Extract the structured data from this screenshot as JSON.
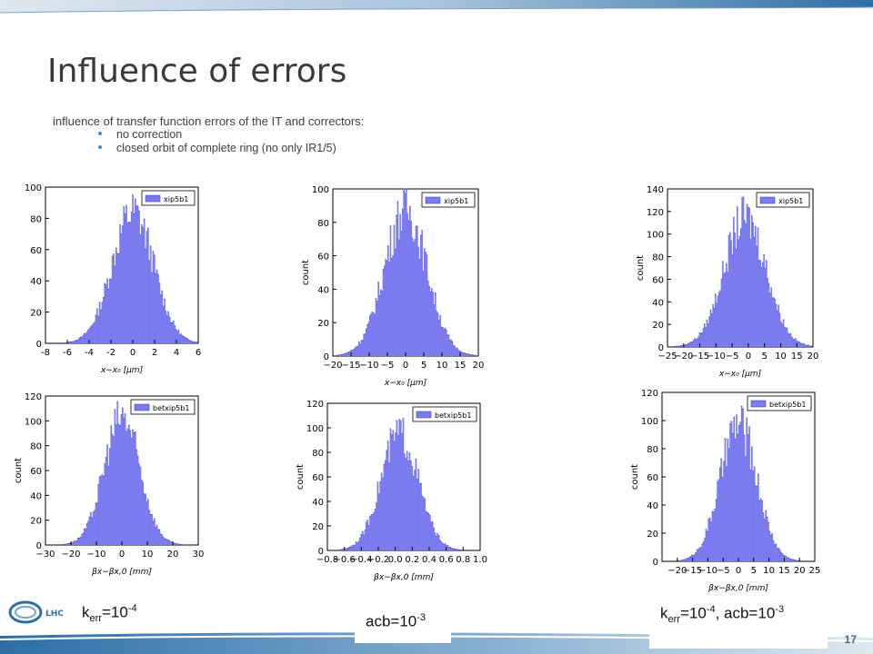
{
  "slide": {
    "title": "Influence of errors",
    "intro": "influence of transfer function errors of the IT and correctors:",
    "bullets": [
      "no correction",
      "closed orbit of complete ring (no only IR1/5)"
    ],
    "page_number": "17",
    "logo_text": "LHC"
  },
  "captions": {
    "left": {
      "base": "k",
      "sub": "err",
      "mid": "=10",
      "sup": "-4"
    },
    "middle": {
      "base": "acb=10",
      "sup": "-3"
    },
    "right": {
      "base": "k",
      "sub": "err",
      "mid": "=10",
      "sup": "-4",
      "tail": ", acb=10",
      "sup2": "-3"
    }
  },
  "colors": {
    "bar_fill": "#7b7bf0",
    "bar_edge": "#4a4aa8",
    "accent": "#4a8bc9"
  },
  "chart_data": [
    {
      "type": "bar",
      "id": "c1",
      "legend": "xip5b1",
      "xlabel": "x−x₀ [μm]",
      "ylabel": "",
      "xlim": [
        -8,
        6
      ],
      "ylim": [
        0,
        100
      ],
      "xticks": [
        "-8",
        "-6",
        "-4",
        "-2",
        "0",
        "2",
        "4",
        "6"
      ],
      "yticks": [
        "0",
        "20",
        "40",
        "60",
        "80",
        "100"
      ],
      "distribution": {
        "mean": 0,
        "sigma": 1.9,
        "peak": 88
      },
      "legend_position": "top-right"
    },
    {
      "type": "bar",
      "id": "c2",
      "legend": "xip5b1",
      "xlabel": "x−x₀ [μm]",
      "ylabel": "count",
      "xlim": [
        -20,
        20
      ],
      "ylim": [
        0,
        100
      ],
      "xticks": [
        "−20",
        "−15",
        "−10",
        "−5",
        "0",
        "5",
        "10",
        "15",
        "20"
      ],
      "yticks": [
        "0",
        "20",
        "40",
        "60",
        "80",
        "100"
      ],
      "distribution": {
        "mean": 0,
        "sigma": 5.8,
        "peak": 92
      },
      "legend_position": "top-right"
    },
    {
      "type": "bar",
      "id": "c3",
      "legend": "xip5b1",
      "xlabel": "x−x₀ [μm]",
      "ylabel": "count",
      "xlim": [
        -25,
        20
      ],
      "ylim": [
        0,
        140
      ],
      "xticks": [
        "−25",
        "−20",
        "−15",
        "−10",
        "−5",
        "0",
        "5",
        "10",
        "15",
        "20"
      ],
      "yticks": [
        "0",
        "20",
        "40",
        "60",
        "80",
        "100",
        "120",
        "140"
      ],
      "distribution": {
        "mean": -1,
        "sigma": 6.5,
        "peak": 120
      },
      "legend_position": "top-right"
    },
    {
      "type": "bar",
      "id": "c4",
      "legend": "betxip5b1",
      "xlabel": "βx−βx,0 [mm]",
      "ylabel": "count",
      "xlim": [
        -30,
        30
      ],
      "ylim": [
        0,
        120
      ],
      "xticks": [
        "−30",
        "−20",
        "−10",
        "0",
        "10",
        "20",
        "30"
      ],
      "yticks": [
        "0",
        "20",
        "40",
        "60",
        "80",
        "100",
        "120"
      ],
      "distribution": {
        "mean": 0,
        "sigma": 7,
        "peak": 108
      },
      "legend_position": "top-right"
    },
    {
      "type": "bar",
      "id": "c5",
      "legend": "betxip5b1",
      "xlabel": "βx−βx,0 [mm]",
      "ylabel": "count",
      "xlim": [
        -0.8,
        1.0
      ],
      "ylim": [
        0,
        120
      ],
      "xticks": [
        "−0.8",
        "−0.6",
        "−0.4",
        "−0.2",
        "0.0",
        "0.2",
        "0.4",
        "0.6",
        "0.8",
        "1.0"
      ],
      "yticks": [
        "0",
        "20",
        "40",
        "60",
        "80",
        "100",
        "120"
      ],
      "distribution": {
        "mean": 0.05,
        "sigma": 0.22,
        "peak": 100
      },
      "legend_position": "top-right"
    },
    {
      "type": "bar",
      "id": "c6",
      "legend": "betxip5b1",
      "xlabel": "βx−βx,0 [mm]",
      "ylabel": "count",
      "xlim": [
        -25,
        25
      ],
      "ylim": [
        0,
        120
      ],
      "xticks": [
        "−20",
        "−15",
        "−10",
        "−5",
        "0",
        "5",
        "10",
        "15",
        "20",
        "25"
      ],
      "yticks": [
        "0",
        "20",
        "40",
        "60",
        "80",
        "100",
        "120"
      ],
      "distribution": {
        "mean": 0,
        "sigma": 6,
        "peak": 102
      },
      "legend_position": "top-right"
    }
  ]
}
